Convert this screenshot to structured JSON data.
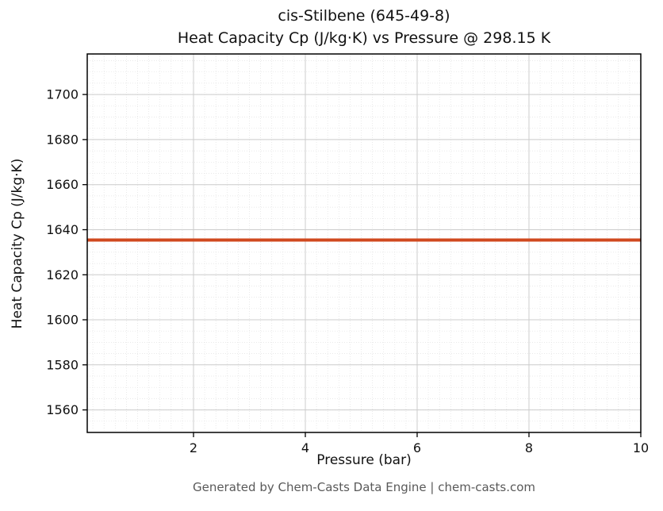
{
  "chart_data": {
    "type": "line",
    "title": "cis-Stilbene (645-49-8)",
    "subtitle": "Heat Capacity Cp (J/kg·K) vs Pressure @ 298.15 K",
    "xlabel": "Pressure (bar)",
    "ylabel": "Heat Capacity Cp (J/kg·K)",
    "x": [
      0.1,
      10
    ],
    "series": [
      {
        "name": "Cp",
        "values": [
          1635.4,
          1635.4
        ],
        "color": "#d0491f"
      }
    ],
    "xlim": [
      0.1,
      10
    ],
    "ylim": [
      1550,
      1718
    ],
    "xticks": [
      2,
      4,
      6,
      8,
      10
    ],
    "yticks": [
      1560,
      1580,
      1600,
      1620,
      1640,
      1660,
      1680,
      1700
    ],
    "grid": true,
    "minor_grid": true,
    "legend": "none",
    "line_width": 4,
    "major_grid_color": "#cccccc",
    "minor_grid_color": "#e2e2e2",
    "axis_color": "#000000"
  },
  "footer": {
    "text": "Generated by Chem-Casts Data Engine | chem-casts.com"
  }
}
